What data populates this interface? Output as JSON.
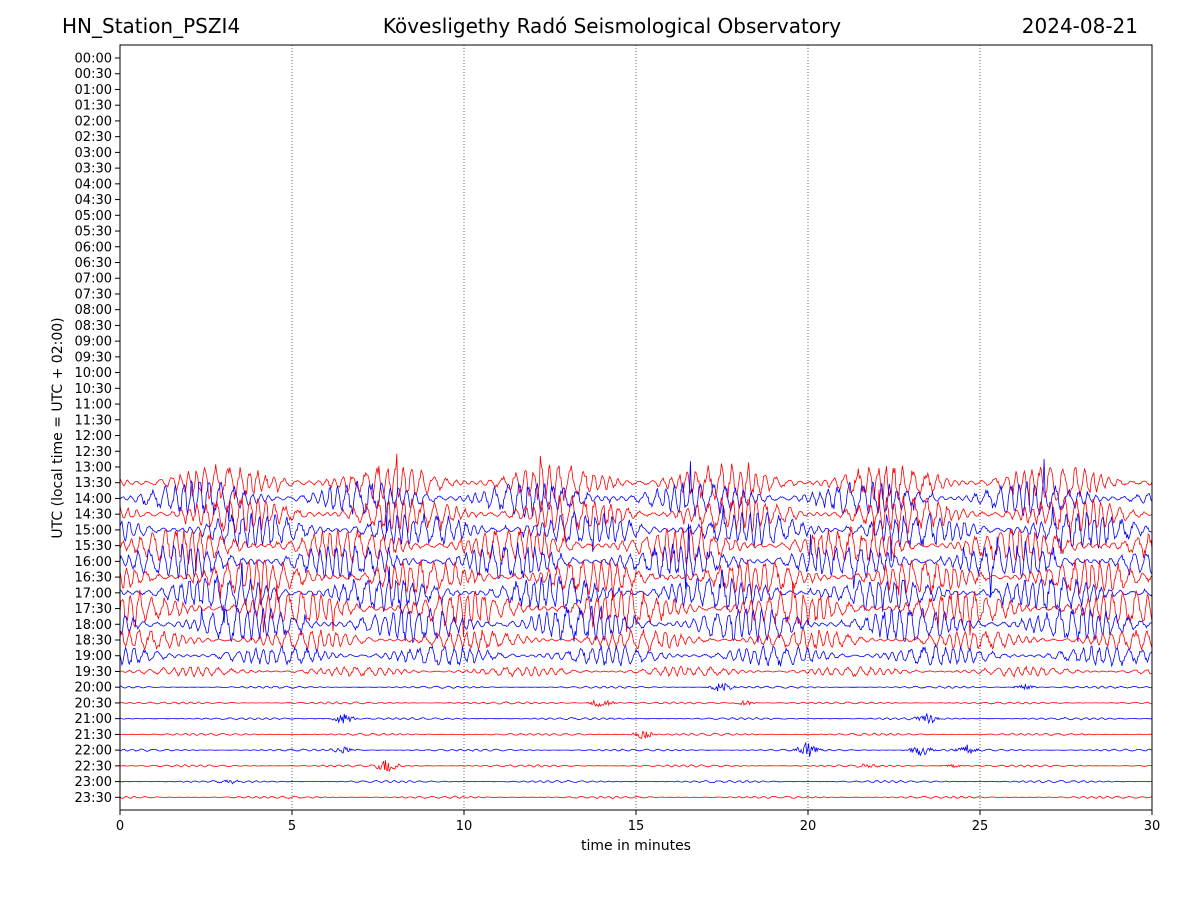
{
  "header": {
    "station": "HN_Station_PSZI4",
    "title": "Kövesligethy Radó Seismological Observatory",
    "date": "2024-08-21"
  },
  "chart_data": {
    "type": "line",
    "title": "Kövesligethy Radó Seismological Observatory",
    "xlabel": "time in minutes",
    "ylabel": "UTC (local time = UTC + 02:00)",
    "xlim": [
      0,
      30
    ],
    "xticks": [
      0,
      5,
      10,
      15,
      20,
      25,
      30
    ],
    "x_gridlines": [
      5,
      10,
      15,
      20,
      25
    ],
    "grid": "vertical dotted",
    "trace_colors": [
      "#ff0000",
      "#0000ff"
    ],
    "row_labels": [
      "00:00",
      "00:30",
      "01:00",
      "01:30",
      "02:00",
      "02:30",
      "03:00",
      "03:30",
      "04:00",
      "04:30",
      "05:00",
      "05:30",
      "06:00",
      "06:30",
      "07:00",
      "07:30",
      "08:00",
      "08:30",
      "09:00",
      "09:30",
      "10:00",
      "10:30",
      "11:00",
      "11:30",
      "12:00",
      "12:30",
      "13:00",
      "13:30",
      "14:00",
      "14:30",
      "15:00",
      "15:30",
      "16:00",
      "16:30",
      "17:00",
      "17:30",
      "18:00",
      "18:30",
      "19:00",
      "19:30",
      "20:00",
      "20:30",
      "21:00",
      "21:30",
      "22:00",
      "22:30",
      "23:00",
      "23:30"
    ],
    "series": [
      {
        "row": "13:30",
        "color": "red",
        "activity": "high"
      },
      {
        "row": "14:00",
        "color": "blue",
        "activity": "high"
      },
      {
        "row": "14:30",
        "color": "red",
        "activity": "high"
      },
      {
        "row": "15:00",
        "color": "blue",
        "activity": "high"
      },
      {
        "row": "15:30",
        "color": "red",
        "activity": "high"
      },
      {
        "row": "16:00",
        "color": "blue",
        "activity": "high"
      },
      {
        "row": "16:30",
        "color": "red",
        "activity": "high"
      },
      {
        "row": "17:00",
        "color": "blue",
        "activity": "high"
      },
      {
        "row": "17:30",
        "color": "red",
        "activity": "high"
      },
      {
        "row": "18:00",
        "color": "blue",
        "activity": "high"
      },
      {
        "row": "18:30",
        "color": "red",
        "activity": "medium"
      },
      {
        "row": "19:00",
        "color": "blue",
        "activity": "medium"
      },
      {
        "row": "19:30",
        "color": "red",
        "activity": "low"
      },
      {
        "row": "20:00",
        "color": "blue",
        "activity": "quiet",
        "bursts": [
          [
            17.5,
            0.6
          ],
          [
            26.3,
            0.3
          ]
        ]
      },
      {
        "row": "20:30",
        "color": "red",
        "activity": "quiet",
        "bursts": [
          [
            14,
            0.6
          ],
          [
            18.2,
            0.3
          ]
        ]
      },
      {
        "row": "21:00",
        "color": "blue",
        "activity": "quiet",
        "bursts": [
          [
            6.5,
            0.6
          ],
          [
            23.5,
            0.6
          ]
        ]
      },
      {
        "row": "21:30",
        "color": "red",
        "activity": "quiet",
        "bursts": [
          [
            15.2,
            0.5
          ]
        ]
      },
      {
        "row": "22:00",
        "color": "blue",
        "activity": "quiet",
        "bursts": [
          [
            6.5,
            0.4
          ],
          [
            20,
            1.0
          ],
          [
            23.3,
            0.7
          ],
          [
            24.6,
            0.6
          ]
        ]
      },
      {
        "row": "22:30",
        "color": "red",
        "activity": "quiet",
        "bursts": [
          [
            7.8,
            0.9
          ],
          [
            21.8,
            0.2
          ],
          [
            24.2,
            0.2
          ]
        ]
      },
      {
        "row": "23:00",
        "color": "blue",
        "activity": "quiet",
        "bursts": [
          [
            3.2,
            0.2
          ]
        ]
      },
      {
        "row": "23:30",
        "color": "red",
        "activity": "quiet"
      }
    ]
  }
}
